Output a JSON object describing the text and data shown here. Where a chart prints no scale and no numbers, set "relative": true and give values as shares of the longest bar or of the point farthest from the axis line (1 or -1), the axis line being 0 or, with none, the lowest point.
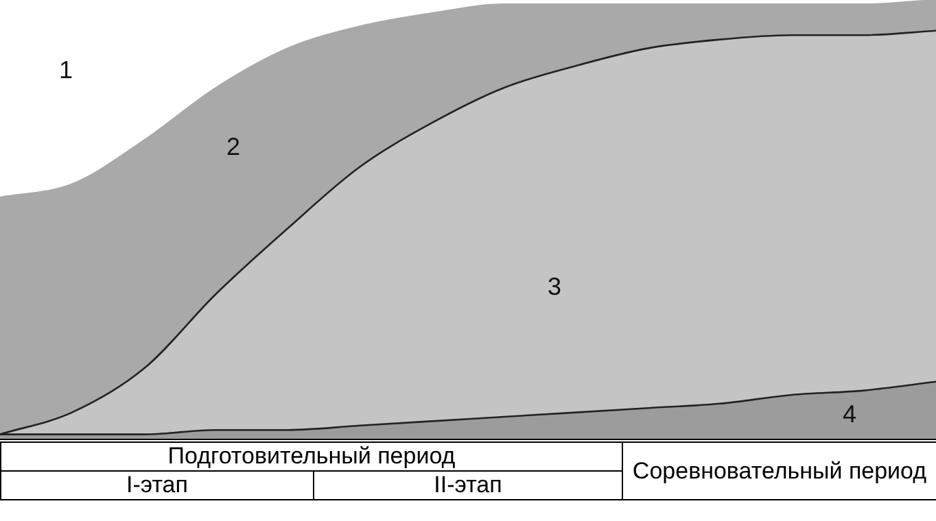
{
  "chart_data": {
    "type": "area",
    "relative": true,
    "stacked": true,
    "categories": [
      null,
      null,
      null,
      null,
      null,
      null,
      null,
      null,
      null,
      null,
      null,
      null,
      null,
      null
    ],
    "series": [
      {
        "color": "#9c9c9c",
        "values": [
          0.01,
          0.01,
          0.01,
          0.02,
          0.02,
          0.03,
          0.04,
          0.05,
          0.06,
          0.07,
          0.08,
          0.1,
          0.11,
          0.13
        ]
      },
      {
        "color": "#c4c4c4",
        "values": [
          0,
          0.05,
          0.15,
          0.31,
          0.46,
          0.59,
          0.68,
          0.75,
          0.79,
          0.82,
          0.83,
          0.82,
          0.81,
          0.8
        ]
      },
      {
        "color": "#a9a9a9",
        "values": [
          0.54,
          0.52,
          0.52,
          0.47,
          0.41,
          0.32,
          0.25,
          0.19,
          0.14,
          0.1,
          0.08,
          0.07,
          0.07,
          0.07
        ]
      }
    ],
    "annotations": [
      "1",
      "2",
      "3",
      "4",
      "Подготовительный период",
      "I-этап",
      "II-этап",
      "Соревновательный период"
    ],
    "legend": false
  }
}
